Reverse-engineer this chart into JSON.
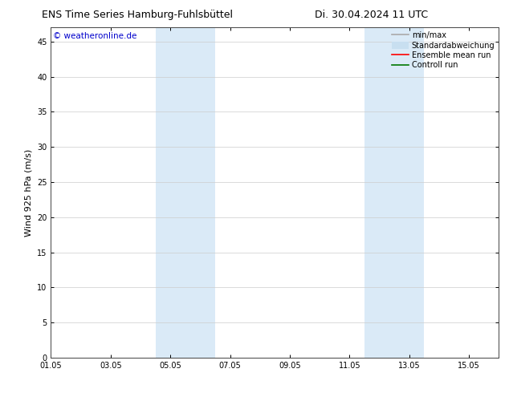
{
  "title_left": "ENS Time Series Hamburg-Fuhlsbüttel",
  "title_right": "Di. 30.04.2024 11 UTC",
  "ylabel": "Wind 925 hPa (m/s)",
  "xlim": [
    0,
    15
  ],
  "ylim": [
    0,
    47
  ],
  "yticks": [
    0,
    5,
    10,
    15,
    20,
    25,
    30,
    35,
    40,
    45
  ],
  "xtick_labels": [
    "01.05",
    "03.05",
    "05.05",
    "07.05",
    "09.05",
    "11.05",
    "13.05",
    "15.05"
  ],
  "xtick_positions": [
    0,
    2,
    4,
    6,
    8,
    10,
    12,
    14
  ],
  "background_color": "#ffffff",
  "plot_bg_color": "#ffffff",
  "shade_regions": [
    {
      "start": 3.5,
      "end": 5.5,
      "color": "#daeaf7"
    },
    {
      "start": 10.5,
      "end": 12.5,
      "color": "#daeaf7"
    }
  ],
  "watermark_text": "© weatheronline.de",
  "watermark_color": "#0000cc",
  "legend_items": [
    {
      "label": "min/max",
      "color": "#aaaaaa",
      "lw": 1.2,
      "patch": false
    },
    {
      "label": "Standardabweichung",
      "color": "#c8dff0",
      "lw": 8,
      "patch": true
    },
    {
      "label": "Ensemble mean run",
      "color": "#ff0000",
      "lw": 1.2,
      "patch": false
    },
    {
      "label": "Controll run",
      "color": "#007700",
      "lw": 1.2,
      "patch": false
    }
  ],
  "title_fontsize": 9,
  "tick_fontsize": 7,
  "ylabel_fontsize": 8,
  "watermark_fontsize": 7.5,
  "legend_fontsize": 7
}
